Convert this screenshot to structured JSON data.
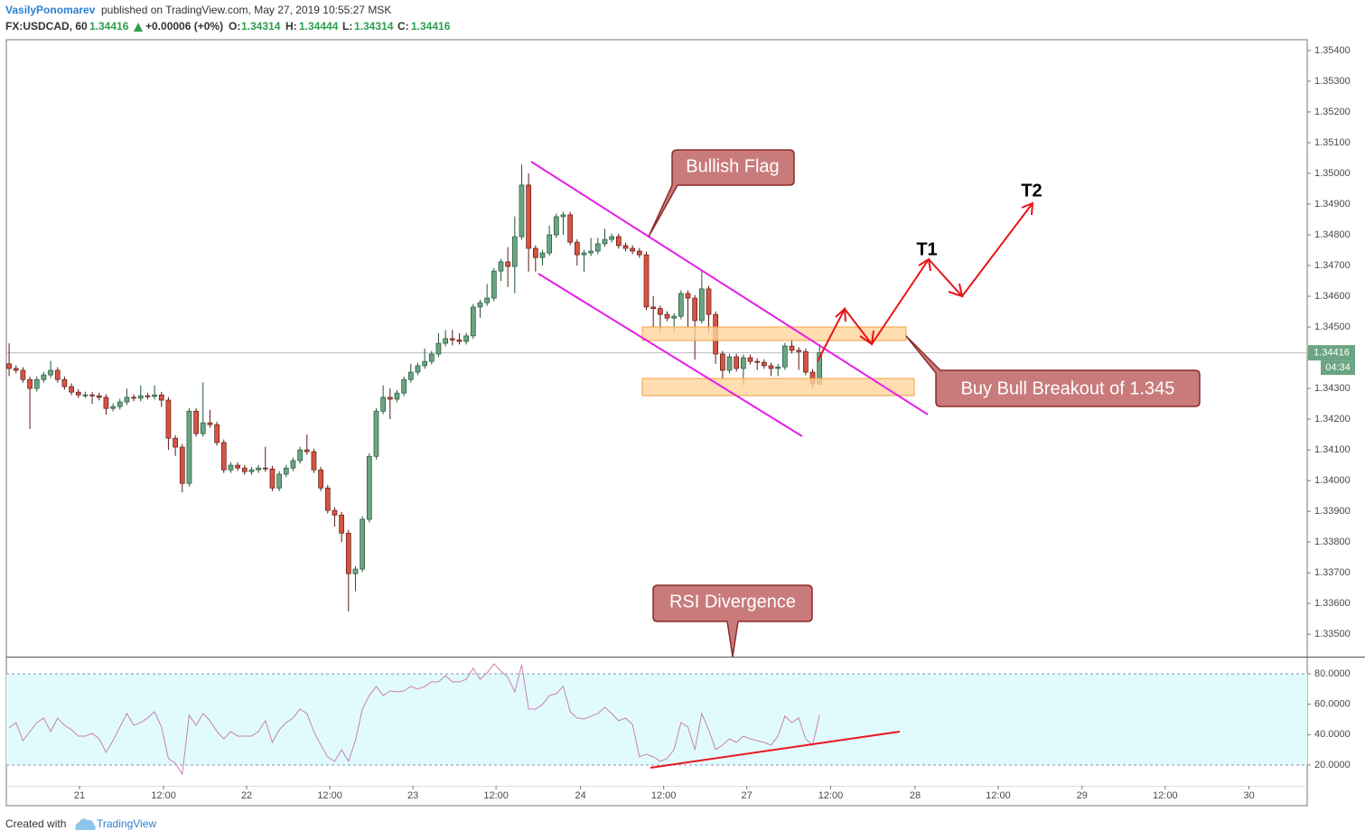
{
  "header": {
    "author": "VasilyPonomarev",
    "published": "published on TradingView.com, May 27, 2019 10:55:27 MSK",
    "symbol": "FX:USDCAD, 60",
    "last": "1.34416",
    "change": "+0.00006 (+0%)",
    "ohlc": [
      {
        "label": "O:",
        "value": "1.34314"
      },
      {
        "label": "H:",
        "value": "1.34444"
      },
      {
        "label": "L:",
        "value": "1.34314"
      },
      {
        "label": "C:",
        "value": "1.34416"
      }
    ],
    "countdown": "04:34"
  },
  "footer": {
    "created": "Created with",
    "brand": "TradingView"
  },
  "chart_data": [
    {
      "type": "candlestick",
      "up_color": "#6ba583",
      "down_color": "#d75442",
      "grid": false,
      "xlim": [
        -0.4,
        187.4
      ],
      "ylim": [
        1.33427,
        1.35435
      ],
      "yticks": [
        {
          "value": 1.335,
          "label": "1.33500"
        },
        {
          "value": 1.336,
          "label": "1.33600"
        },
        {
          "value": 1.337,
          "label": "1.33700"
        },
        {
          "value": 1.338,
          "label": "1.33800"
        },
        {
          "value": 1.339,
          "label": "1.33900"
        },
        {
          "value": 1.34,
          "label": "1.34000"
        },
        {
          "value": 1.341,
          "label": "1.34100"
        },
        {
          "value": 1.342,
          "label": "1.34200"
        },
        {
          "value": 1.343,
          "label": "1.34300"
        },
        {
          "value": 1.344,
          "label": "1.34400"
        },
        {
          "value": 1.345,
          "label": "1.34500"
        },
        {
          "value": 1.346,
          "label": "1.34600"
        },
        {
          "value": 1.347,
          "label": "1.34700"
        },
        {
          "value": 1.348,
          "label": "1.34800"
        },
        {
          "value": 1.349,
          "label": "1.34900"
        },
        {
          "value": 1.35,
          "label": "1.35000"
        },
        {
          "value": 1.351,
          "label": "1.35100"
        },
        {
          "value": 1.352,
          "label": "1.35200"
        },
        {
          "value": 1.353,
          "label": "1.35300"
        },
        {
          "value": 1.354,
          "label": "1.35400"
        }
      ],
      "xticks": [
        {
          "value": 10.17,
          "label": "21"
        },
        {
          "value": 22.3,
          "label": "12:00"
        },
        {
          "value": 34.3,
          "label": "22"
        },
        {
          "value": 46.3,
          "label": "12:00"
        },
        {
          "value": 58.3,
          "label": "23"
        },
        {
          "value": 70.3,
          "label": "12:00"
        },
        {
          "value": 82.5,
          "label": "24"
        },
        {
          "value": 94.5,
          "label": "12:00"
        },
        {
          "value": 106.5,
          "label": "27"
        },
        {
          "value": 118.6,
          "label": "12:00"
        },
        {
          "value": 130.8,
          "label": "28"
        },
        {
          "value": 142.8,
          "label": "12:00"
        },
        {
          "value": 154.9,
          "label": "29"
        },
        {
          "value": 166.9,
          "label": "12:00"
        },
        {
          "value": 179.0,
          "label": "30"
        }
      ],
      "open": [
        1.3438,
        1.34365,
        1.34359,
        1.34329,
        1.343,
        1.34329,
        1.34344,
        1.34359,
        1.34329,
        1.34306,
        1.34288,
        1.34279,
        1.34279,
        1.34276,
        1.34271,
        1.34235,
        1.34241,
        1.34256,
        1.34271,
        1.34268,
        1.34276,
        1.34274,
        1.34279,
        1.34262,
        1.34138,
        1.34109,
        1.33991,
        1.34226,
        1.34153,
        1.34188,
        1.34182,
        1.34124,
        1.34035,
        1.3405,
        1.34041,
        1.34029,
        1.34035,
        1.34041,
        1.34038,
        1.33976,
        1.34021,
        1.34041,
        1.34065,
        1.341,
        1.34094,
        1.34035,
        1.33976,
        1.33903,
        1.33888,
        1.33829,
        1.33697,
        1.33712,
        1.33874,
        1.34079,
        1.34226,
        1.34271,
        1.34265,
        1.34285,
        1.34329,
        1.34353,
        1.34374,
        1.34388,
        1.34412,
        1.34447,
        1.34462,
        1.34458,
        1.34453,
        1.34471,
        1.34565,
        1.34579,
        1.34594,
        1.34682,
        1.34712,
        1.34697,
        1.34794,
        1.34962,
        1.34756,
        1.34726,
        1.34741,
        1.348,
        1.34859,
        1.34865,
        1.34776,
        1.34735,
        1.34741,
        1.34747,
        1.34771,
        1.34785,
        1.34794,
        1.34765,
        1.34756,
        1.34747,
        1.34735,
        1.34565,
        1.3456,
        1.34541,
        1.34529,
        1.34535,
        1.34609,
        1.34594,
        1.34521,
        1.34624,
        1.34541,
        1.34412,
        1.34359,
        1.34403,
        1.34365,
        1.344,
        1.34388,
        1.34385,
        1.34374,
        1.34365,
        1.3437,
        1.34438,
        1.34424,
        1.3442,
        1.34353,
        1.34314
      ],
      "high": [
        1.34447,
        1.34375,
        1.34369,
        1.34339,
        1.34339,
        1.34354,
        1.3439,
        1.34369,
        1.34339,
        1.34316,
        1.34298,
        1.34289,
        1.34289,
        1.34286,
        1.34281,
        1.34251,
        1.34266,
        1.343,
        1.34281,
        1.3431,
        1.34286,
        1.3431,
        1.34289,
        1.34272,
        1.34148,
        1.34119,
        1.34236,
        1.34236,
        1.3432,
        1.3423,
        1.34192,
        1.34134,
        1.3406,
        1.3406,
        1.34051,
        1.34045,
        1.34051,
        1.3411,
        1.34048,
        1.34031,
        1.34051,
        1.34075,
        1.3411,
        1.3415,
        1.34104,
        1.34045,
        1.33986,
        1.33913,
        1.33898,
        1.33839,
        1.33722,
        1.33884,
        1.34089,
        1.34236,
        1.3431,
        1.343,
        1.34295,
        1.34339,
        1.3438,
        1.34384,
        1.3443,
        1.34422,
        1.3448,
        1.3449,
        1.3449,
        1.3448,
        1.34481,
        1.34575,
        1.34589,
        1.3464,
        1.34692,
        1.34722,
        1.3476,
        1.3486,
        1.35029,
        1.35,
        1.34766,
        1.34751,
        1.3483,
        1.34869,
        1.34875,
        1.34875,
        1.34786,
        1.34751,
        1.3479,
        1.3479,
        1.3482,
        1.34804,
        1.34804,
        1.34775,
        1.34766,
        1.34757,
        1.34745,
        1.346,
        1.3457,
        1.34551,
        1.34545,
        1.34619,
        1.34619,
        1.34604,
        1.34682,
        1.34634,
        1.34551,
        1.34422,
        1.34413,
        1.34413,
        1.3441,
        1.3441,
        1.34398,
        1.34395,
        1.34384,
        1.3438,
        1.34448,
        1.3446,
        1.34434,
        1.3443,
        1.34363,
        1.34444
      ],
      "low": [
        1.3434,
        1.34349,
        1.34319,
        1.34168,
        1.3429,
        1.34319,
        1.34334,
        1.34319,
        1.34296,
        1.34278,
        1.34269,
        1.34269,
        1.3425,
        1.34261,
        1.34215,
        1.34225,
        1.34231,
        1.34246,
        1.34258,
        1.34258,
        1.34264,
        1.34264,
        1.3424,
        1.341,
        1.3408,
        1.33962,
        1.33981,
        1.34143,
        1.34143,
        1.34172,
        1.34114,
        1.34025,
        1.34025,
        1.34031,
        1.34019,
        1.34019,
        1.34025,
        1.34028,
        1.33966,
        1.33966,
        1.34011,
        1.34031,
        1.34055,
        1.34084,
        1.34025,
        1.33966,
        1.33893,
        1.3385,
        1.338,
        1.33574,
        1.3364,
        1.33702,
        1.33864,
        1.34069,
        1.34216,
        1.342,
        1.34255,
        1.34275,
        1.34319,
        1.34343,
        1.34364,
        1.34378,
        1.34402,
        1.34437,
        1.3444,
        1.34443,
        1.34443,
        1.34461,
        1.3453,
        1.34569,
        1.34584,
        1.3465,
        1.3463,
        1.3461,
        1.34784,
        1.3468,
        1.3468,
        1.347,
        1.34731,
        1.3479,
        1.348,
        1.34766,
        1.347,
        1.3468,
        1.34731,
        1.34737,
        1.34761,
        1.34775,
        1.34755,
        1.34746,
        1.34737,
        1.34725,
        1.34555,
        1.345,
        1.3448,
        1.34519,
        1.3448,
        1.34525,
        1.345,
        1.34394,
        1.34511,
        1.3448,
        1.3438,
        1.3433,
        1.34349,
        1.34355,
        1.3431,
        1.34378,
        1.3436,
        1.34364,
        1.3434,
        1.3434,
        1.3436,
        1.34414,
        1.3436,
        1.34343,
        1.343,
        1.34314
      ],
      "close": [
        1.34365,
        1.34359,
        1.34329,
        1.343,
        1.34329,
        1.34344,
        1.34359,
        1.34329,
        1.34306,
        1.34288,
        1.34279,
        1.34279,
        1.34276,
        1.34271,
        1.34235,
        1.34241,
        1.34256,
        1.34271,
        1.34268,
        1.34276,
        1.34274,
        1.34279,
        1.34262,
        1.34138,
        1.34109,
        1.33991,
        1.34226,
        1.34153,
        1.34188,
        1.34182,
        1.34124,
        1.34035,
        1.3405,
        1.34041,
        1.34029,
        1.34035,
        1.34041,
        1.34038,
        1.33976,
        1.34021,
        1.34041,
        1.34065,
        1.341,
        1.34094,
        1.34035,
        1.33976,
        1.33903,
        1.33888,
        1.33829,
        1.33697,
        1.33712,
        1.33874,
        1.34079,
        1.34226,
        1.34271,
        1.34265,
        1.34285,
        1.34329,
        1.34353,
        1.34374,
        1.34388,
        1.34412,
        1.34447,
        1.34462,
        1.34458,
        1.34453,
        1.34471,
        1.34565,
        1.34579,
        1.34594,
        1.34682,
        1.34712,
        1.34697,
        1.34794,
        1.34962,
        1.34756,
        1.34726,
        1.34741,
        1.348,
        1.34859,
        1.34865,
        1.34776,
        1.34735,
        1.34741,
        1.34747,
        1.34771,
        1.34785,
        1.34794,
        1.34765,
        1.34756,
        1.34747,
        1.34735,
        1.34565,
        1.3456,
        1.34541,
        1.34529,
        1.34535,
        1.34609,
        1.34594,
        1.34521,
        1.34624,
        1.34541,
        1.34412,
        1.34359,
        1.34403,
        1.34365,
        1.344,
        1.34388,
        1.34385,
        1.34374,
        1.34365,
        1.3437,
        1.34438,
        1.34424,
        1.3442,
        1.34353,
        1.34315,
        1.34416
      ],
      "annotations": {
        "flag": "Bullish Flag",
        "breakout": "Buy Bull Breakout of 1.345",
        "divergence": "RSI Divergence",
        "t1": "T1",
        "t2": "T2"
      }
    },
    {
      "type": "line",
      "color": "#c97fb5",
      "band": [
        20,
        80
      ],
      "band_color": "#e1fbfd",
      "xlim": [
        -0.4,
        187.4
      ],
      "ylim": [
        6.3,
        90.7
      ],
      "yticks": [
        {
          "value": 20,
          "label": "20.0000"
        },
        {
          "value": 40,
          "label": "40.0000"
        },
        {
          "value": 60,
          "label": "60.0000"
        },
        {
          "value": 80,
          "label": "80.0000"
        }
      ],
      "values": [
        44.4,
        47.9,
        36.0,
        42.0,
        47.9,
        50.9,
        42.0,
        50.9,
        46.1,
        43.2,
        39.0,
        39.0,
        40.8,
        37.2,
        28.3,
        36.0,
        45.0,
        53.9,
        46.1,
        47.9,
        50.9,
        55.1,
        45.0,
        24.2,
        21.2,
        14.1,
        52.7,
        46.1,
        53.9,
        49.1,
        42.0,
        37.2,
        42.0,
        39.0,
        39.0,
        39.0,
        42.0,
        49.1,
        34.9,
        43.2,
        47.9,
        50.9,
        56.8,
        53.9,
        42.0,
        33.1,
        25.4,
        22.4,
        30.1,
        22.4,
        36.0,
        56.8,
        65.7,
        71.7,
        65.7,
        68.7,
        68.1,
        68.7,
        71.7,
        69.9,
        71.7,
        74.7,
        74.7,
        78.8,
        74.7,
        74.7,
        76.4,
        83.6,
        76.4,
        80.6,
        86.5,
        81.8,
        77.6,
        68.1,
        85.9,
        56.8,
        56.8,
        59.8,
        65.7,
        66.9,
        71.7,
        55.1,
        50.9,
        50.3,
        52.1,
        53.9,
        58.0,
        53.9,
        49.1,
        50.9,
        46.7,
        25.4,
        27.1,
        25.4,
        22.4,
        24.2,
        30.1,
        47.9,
        45.0,
        30.1,
        53.9,
        43.2,
        30.1,
        33.1,
        37.2,
        34.9,
        39.0,
        37.2,
        36.0,
        34.9,
        33.1,
        39.0,
        52.1,
        47.9,
        50.9,
        37.2,
        33.1,
        52.7
      ]
    }
  ]
}
